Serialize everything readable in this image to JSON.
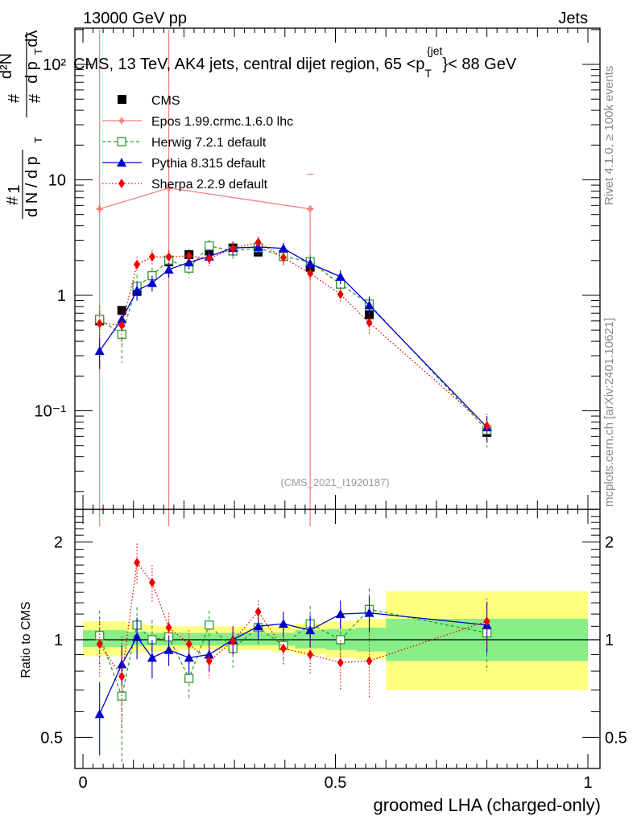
{
  "header": {
    "left": "13000 GeV pp",
    "right": "Jets"
  },
  "side_text": {
    "top": "Rivet 4.1.0, ≥ 100k events",
    "bottom": "mcplots.cern.ch [arXiv:2401.10621]"
  },
  "colors": {
    "cms": "#000000",
    "epos": "#f08080",
    "herwig": "#339933",
    "pythia": "#0000cc",
    "sherpa": "#ee0000",
    "band_yellow": "#ffff80",
    "band_green": "#88ee88"
  },
  "chart_data": [
    {
      "type": "line",
      "panel": "main",
      "title": "CMS, 13 TeV, AK4 jets, central dijet region, 65 <p_T^{jet}< 88 GeV",
      "title_parts": {
        "pre": "CMS, 13 TeV, AK4 jets, central dijet region, 65 <p",
        "sub": "T",
        "sup": "{jet",
        "post": "}< 88 GeV"
      },
      "ylabel": "1/(dN/dp_T) d²N/(dp_T dλ)",
      "yscale": "log",
      "ylim": [
        0.015,
        200
      ],
      "xlim": [
        -0.01,
        1.0
      ],
      "y_tick_labels": [
        "10⁻¹",
        "1",
        "10",
        "10²"
      ],
      "watermark": "(CMS_2021_I1920187)",
      "legend_position": "top-left",
      "x": [
        0.033,
        0.077,
        0.107,
        0.137,
        0.17,
        0.21,
        0.25,
        0.297,
        0.347,
        0.397,
        0.45,
        0.51,
        0.567,
        0.8
      ],
      "cms_bin_edges": [
        0.0,
        0.067,
        0.087,
        0.127,
        0.147,
        0.193,
        0.227,
        0.273,
        0.32,
        0.373,
        0.42,
        0.48,
        0.54,
        0.6,
        1.0
      ],
      "series": [
        {
          "name": "CMS",
          "key": "cms",
          "marker": "square",
          "values": [
            0.6,
            0.74,
            1.08,
            1.48,
            1.95,
            2.25,
            2.42,
            2.57,
            2.37,
            2.25,
            1.75,
            1.25,
            0.68,
            0.065
          ],
          "errors": [
            0.05,
            0.05,
            0.08,
            0.08,
            0.1,
            0.12,
            0.15,
            0.15,
            0.15,
            0.15,
            0.12,
            0.1,
            0.08,
            0.012
          ]
        },
        {
          "name": "Epos 1.99.crmc.1.6.0 lhc",
          "key": "epos",
          "marker": "cross",
          "x": [
            0.033,
            0.17,
            0.45
          ],
          "values": [
            5.6,
            8.5,
            5.6
          ],
          "errors_low": [
            5.59,
            8.49,
            5.59
          ],
          "errors_high": [
            200,
            200,
            5.6
          ]
        },
        {
          "name": "Herwig 7.2.1 default",
          "key": "herwig",
          "marker": "open-square",
          "values": [
            0.62,
            0.46,
            1.2,
            1.48,
            2.02,
            1.72,
            2.68,
            2.42,
            2.58,
            2.17,
            1.95,
            1.25,
            0.84,
            0.068
          ],
          "errors": [
            0.2,
            0.2,
            0.3,
            0.25,
            0.3,
            0.3,
            0.35,
            0.35,
            0.35,
            0.3,
            0.3,
            0.2,
            0.15,
            0.02
          ]
        },
        {
          "name": "Pythia 8.315 default",
          "key": "pythia",
          "marker": "triangle",
          "values": [
            0.33,
            0.62,
            1.1,
            1.28,
            1.67,
            1.93,
            2.17,
            2.57,
            2.62,
            2.55,
            1.88,
            1.45,
            0.82,
            0.072
          ],
          "errors": [
            0.1,
            0.12,
            0.2,
            0.2,
            0.25,
            0.25,
            0.3,
            0.35,
            0.35,
            0.3,
            0.25,
            0.2,
            0.15,
            0.018
          ]
        },
        {
          "name": "Sherpa 2.2.9 default",
          "key": "sherpa",
          "marker": "diamond",
          "values": [
            0.57,
            0.55,
            1.85,
            2.15,
            2.15,
            2.2,
            2.08,
            2.55,
            2.88,
            2.12,
            1.55,
            1.02,
            0.58,
            0.074
          ],
          "errors": [
            0.18,
            0.18,
            0.3,
            0.3,
            0.3,
            0.3,
            0.3,
            0.35,
            0.35,
            0.3,
            0.25,
            0.15,
            0.12,
            0.02
          ]
        }
      ]
    },
    {
      "type": "line",
      "panel": "ratio",
      "ylabel": "Ratio to CMS",
      "xlabel": "groomed LHA (charged-only)",
      "yscale": "log",
      "ylim": [
        0.4,
        2.4
      ],
      "xlim": [
        -0.01,
        1.0
      ],
      "y_tick_labels": [
        "0.5",
        "1",
        "2"
      ],
      "x_tick_labels": [
        "0",
        "0.5",
        "1"
      ],
      "x": [
        0.033,
        0.077,
        0.107,
        0.137,
        0.17,
        0.21,
        0.25,
        0.297,
        0.347,
        0.397,
        0.45,
        0.51,
        0.567,
        0.8
      ],
      "cms_bin_edges": [
        0.0,
        0.067,
        0.087,
        0.127,
        0.147,
        0.193,
        0.227,
        0.273,
        0.32,
        0.373,
        0.42,
        0.48,
        0.54,
        0.6,
        1.0
      ],
      "band_green": [
        [
          0.95,
          1.07
        ],
        [
          0.95,
          1.07
        ],
        [
          0.96,
          1.06
        ],
        [
          0.96,
          1.05
        ],
        [
          0.96,
          1.05
        ],
        [
          0.96,
          1.05
        ],
        [
          0.96,
          1.05
        ],
        [
          0.96,
          1.05
        ],
        [
          0.96,
          1.05
        ],
        [
          0.96,
          1.05
        ],
        [
          0.94,
          1.07
        ],
        [
          0.93,
          1.08
        ],
        [
          0.92,
          1.09
        ],
        [
          0.86,
          1.16
        ]
      ],
      "band_yellow": [
        [
          0.89,
          1.14
        ],
        [
          0.89,
          1.14
        ],
        [
          0.91,
          1.12
        ],
        [
          0.92,
          1.11
        ],
        [
          0.92,
          1.1
        ],
        [
          0.93,
          1.1
        ],
        [
          0.93,
          1.1
        ],
        [
          0.93,
          1.1
        ],
        [
          0.93,
          1.09
        ],
        [
          0.92,
          1.1
        ],
        [
          0.9,
          1.12
        ],
        [
          0.88,
          1.14
        ],
        [
          0.87,
          1.16
        ],
        [
          0.7,
          1.41
        ]
      ],
      "series": [
        {
          "name": "Herwig 7.2.1 default",
          "key": "herwig",
          "marker": "open-square",
          "values": [
            1.03,
            0.67,
            1.11,
            1.0,
            1.02,
            0.76,
            1.11,
            0.94,
            1.09,
            0.96,
            1.12,
            1.0,
            1.24,
            1.05
          ],
          "errors": [
            0.2,
            0.25,
            0.15,
            0.15,
            0.12,
            0.1,
            0.12,
            0.12,
            0.12,
            0.12,
            0.15,
            0.15,
            0.2,
            0.25
          ]
        },
        {
          "name": "Pythia 8.315 default",
          "key": "pythia",
          "marker": "triangle",
          "values": [
            0.59,
            0.84,
            1.02,
            0.88,
            0.93,
            0.88,
            0.9,
            1.0,
            1.1,
            1.12,
            1.07,
            1.2,
            1.21,
            1.11
          ],
          "errors": [
            0.15,
            0.12,
            0.15,
            0.12,
            0.1,
            0.1,
            0.1,
            0.1,
            0.1,
            0.1,
            0.12,
            0.12,
            0.15,
            0.2
          ]
        },
        {
          "name": "Sherpa 2.2.9 default",
          "key": "sherpa",
          "marker": "diamond",
          "values": [
            0.97,
            0.77,
            1.73,
            1.5,
            1.09,
            0.97,
            0.86,
            0.99,
            1.22,
            0.94,
            0.9,
            0.85,
            0.86,
            1.14
          ],
          "errors": [
            0.2,
            0.25,
            0.25,
            0.2,
            0.12,
            0.1,
            0.1,
            0.1,
            0.1,
            0.1,
            0.12,
            0.15,
            0.2,
            0.2
          ]
        }
      ]
    }
  ]
}
